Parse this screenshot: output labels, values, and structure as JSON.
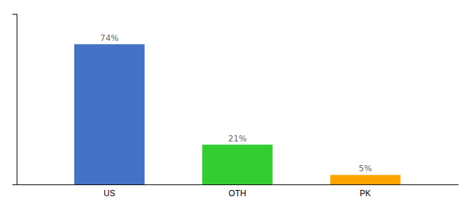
{
  "chart_data": {
    "type": "bar",
    "categories": [
      "US",
      "OTH",
      "PK"
    ],
    "values": [
      74,
      21,
      5
    ],
    "value_labels": [
      "74%",
      "21%",
      "5%"
    ],
    "colors": [
      "#4472C4",
      "#33CC33",
      "#FFA500"
    ],
    "ylim": [
      0,
      90
    ],
    "data_labels": true,
    "tick_labels": "x"
  }
}
